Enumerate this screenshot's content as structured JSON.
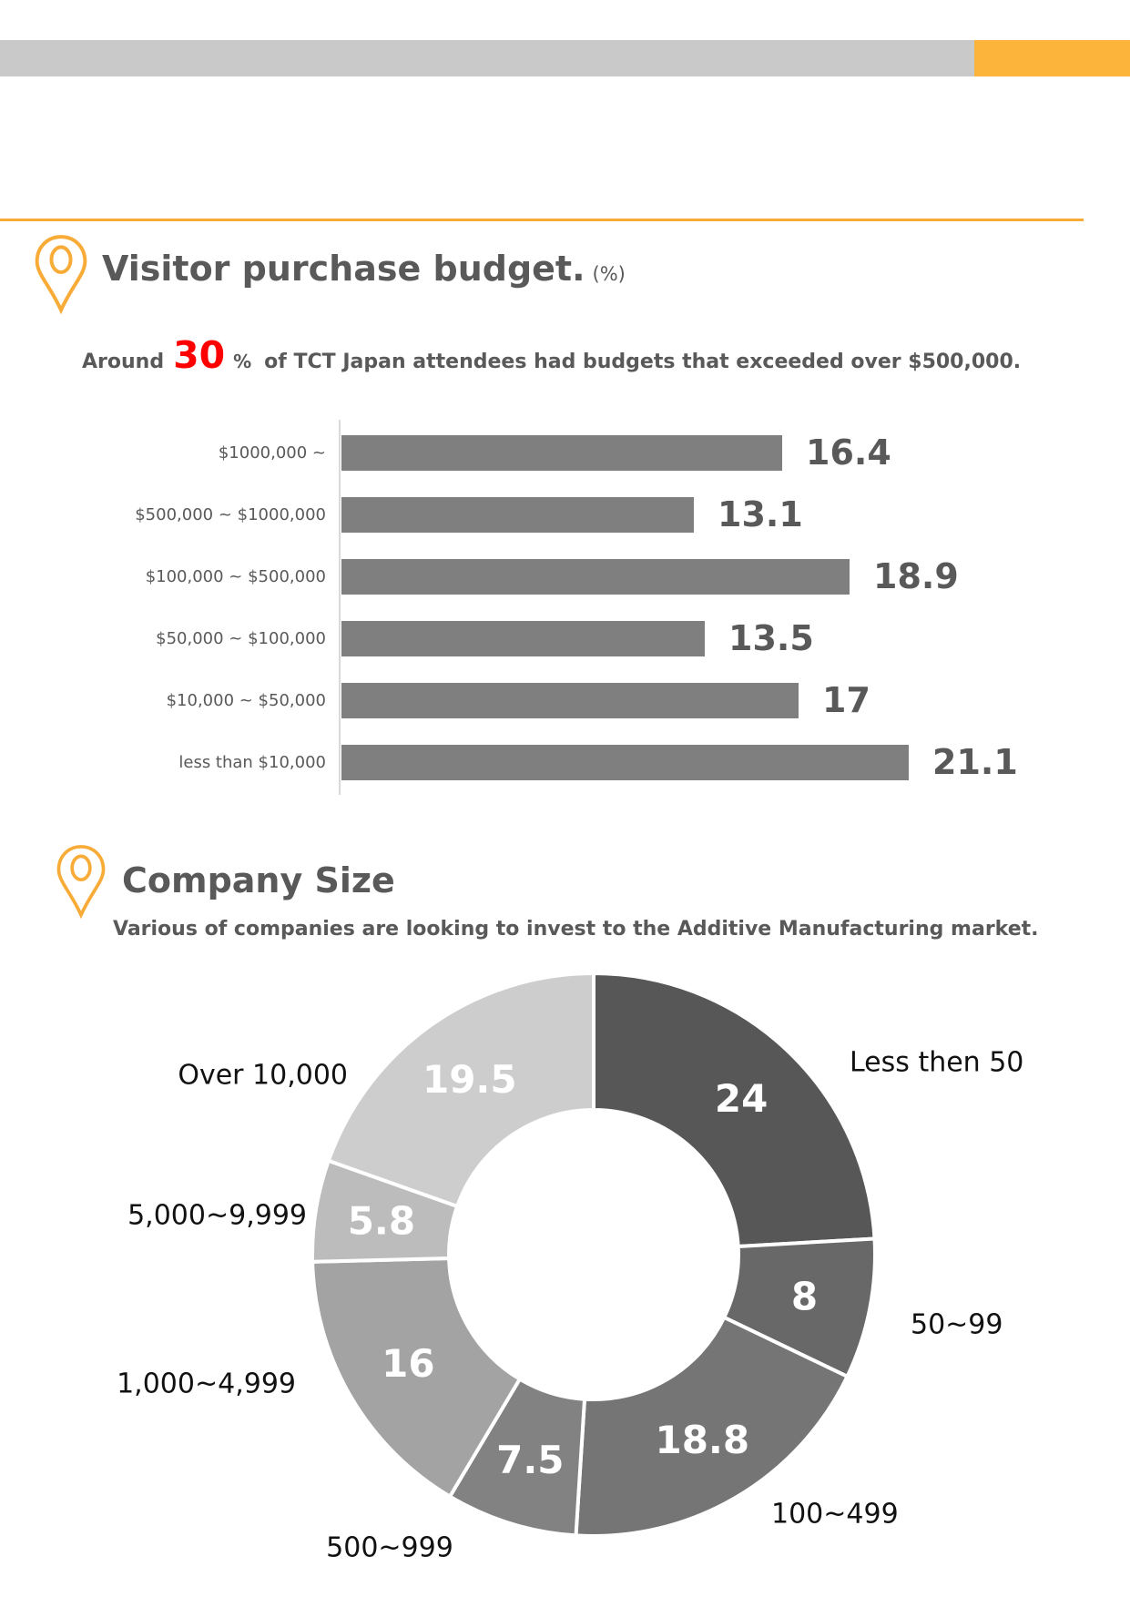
{
  "header": {
    "bar_color": "#c9c9c9",
    "accent_color": "#fcb53a",
    "divider_color": "#f9ab38"
  },
  "icons": {
    "budget_pin": "map-pin-icon",
    "company_pin": "map-pin-icon",
    "pin_color": "#f9ab38"
  },
  "budget_section": {
    "title": "Visitor purchase budget.",
    "title_suffix": "(%)",
    "subtitle_prefix": "Around",
    "subtitle_highlight": "30",
    "subtitle_percent": "%",
    "subtitle_rest": "of TCT Japan attendees had budgets that exceeded over $500,000.",
    "highlight_color": "#ff0000",
    "text_color": "#595959"
  },
  "company_section": {
    "title": "Company Size",
    "subtitle": "Various of companies are looking to invest to the Additive Manufacturing market.",
    "text_color": "#595959"
  },
  "chart_data": [
    {
      "type": "bar",
      "orientation": "horizontal",
      "title": "Visitor purchase budget. (%)",
      "categories": [
        "$1000,000 ~",
        "$500,000 ~ $1000,000",
        "$100,000 ~ $500,000",
        "$50,000 ~ $100,000",
        "$10,000 ~ $50,000",
        "less than $10,000"
      ],
      "values": [
        16.4,
        13.1,
        18.9,
        13.5,
        17,
        21.1
      ],
      "value_labels": [
        "16.4",
        "13.1",
        "18.9",
        "13.5",
        "17",
        "21.1"
      ],
      "bar_color": "#7f7f7f",
      "value_label_color": "#595959",
      "category_label_color": "#595959",
      "axis_color": "#d9d9d9",
      "xlim": [
        0,
        22.5
      ],
      "grid": false,
      "legend": false
    },
    {
      "type": "pie",
      "subtype": "donut",
      "title": "Company Size",
      "categories": [
        "Less then 50",
        "50~99",
        "100~499",
        "500~999",
        "1,000~4,999",
        "5,000~9,999",
        "Over 10,000"
      ],
      "values": [
        24,
        8,
        18.8,
        7.5,
        16,
        5.8,
        19.5
      ],
      "value_labels": [
        "24",
        "8",
        "18.8",
        "7.5",
        "16",
        "5.8",
        "19.5"
      ],
      "colors": [
        "#575757",
        "#686868",
        "#757575",
        "#828282",
        "#a3a3a3",
        "#bcbcbc",
        "#cdcdcd"
      ],
      "separator_color": "#ffffff",
      "inner_label_color": "#ffffff",
      "outer_label_color": "#111111",
      "start_angle_deg": 0,
      "direction": "clockwise",
      "inner_radius_ratio": 0.515,
      "legend": false
    }
  ]
}
